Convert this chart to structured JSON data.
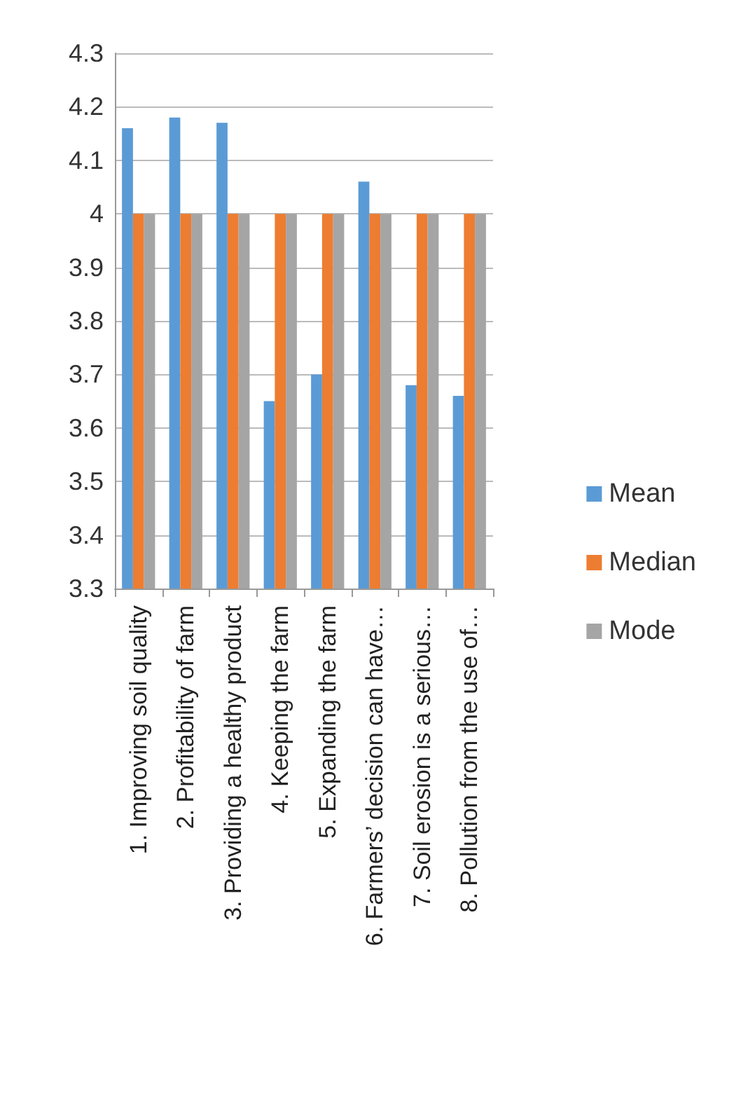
{
  "chart_data": {
    "type": "bar",
    "categories": [
      "1. Improving soil quality",
      "2. Profitability of farm",
      "3. Providing a healthy product",
      "4. Keeping the farm",
      "5. Expanding the farm",
      "6. Farmers’ decision can have…",
      "7. Soil erosion is a serious…",
      "8. Pollution from the use of…"
    ],
    "series": [
      {
        "name": "Mean",
        "color": "#5b9bd5",
        "values": [
          4.16,
          4.18,
          4.17,
          3.65,
          3.7,
          4.06,
          3.68,
          3.66
        ]
      },
      {
        "name": "Median",
        "color": "#ed7d31",
        "values": [
          4,
          4,
          4,
          4,
          4,
          4,
          4,
          4
        ]
      },
      {
        "name": "Mode",
        "color": "#a5a5a5",
        "values": [
          4,
          4,
          4,
          4,
          4,
          4,
          4,
          4
        ]
      }
    ],
    "ylim": [
      3.3,
      4.3
    ],
    "yticks": [
      3.3,
      3.4,
      3.5,
      3.6,
      3.7,
      3.8,
      3.9,
      4,
      4.1,
      4.2,
      4.3
    ],
    "grid": "y",
    "legend": "right"
  }
}
